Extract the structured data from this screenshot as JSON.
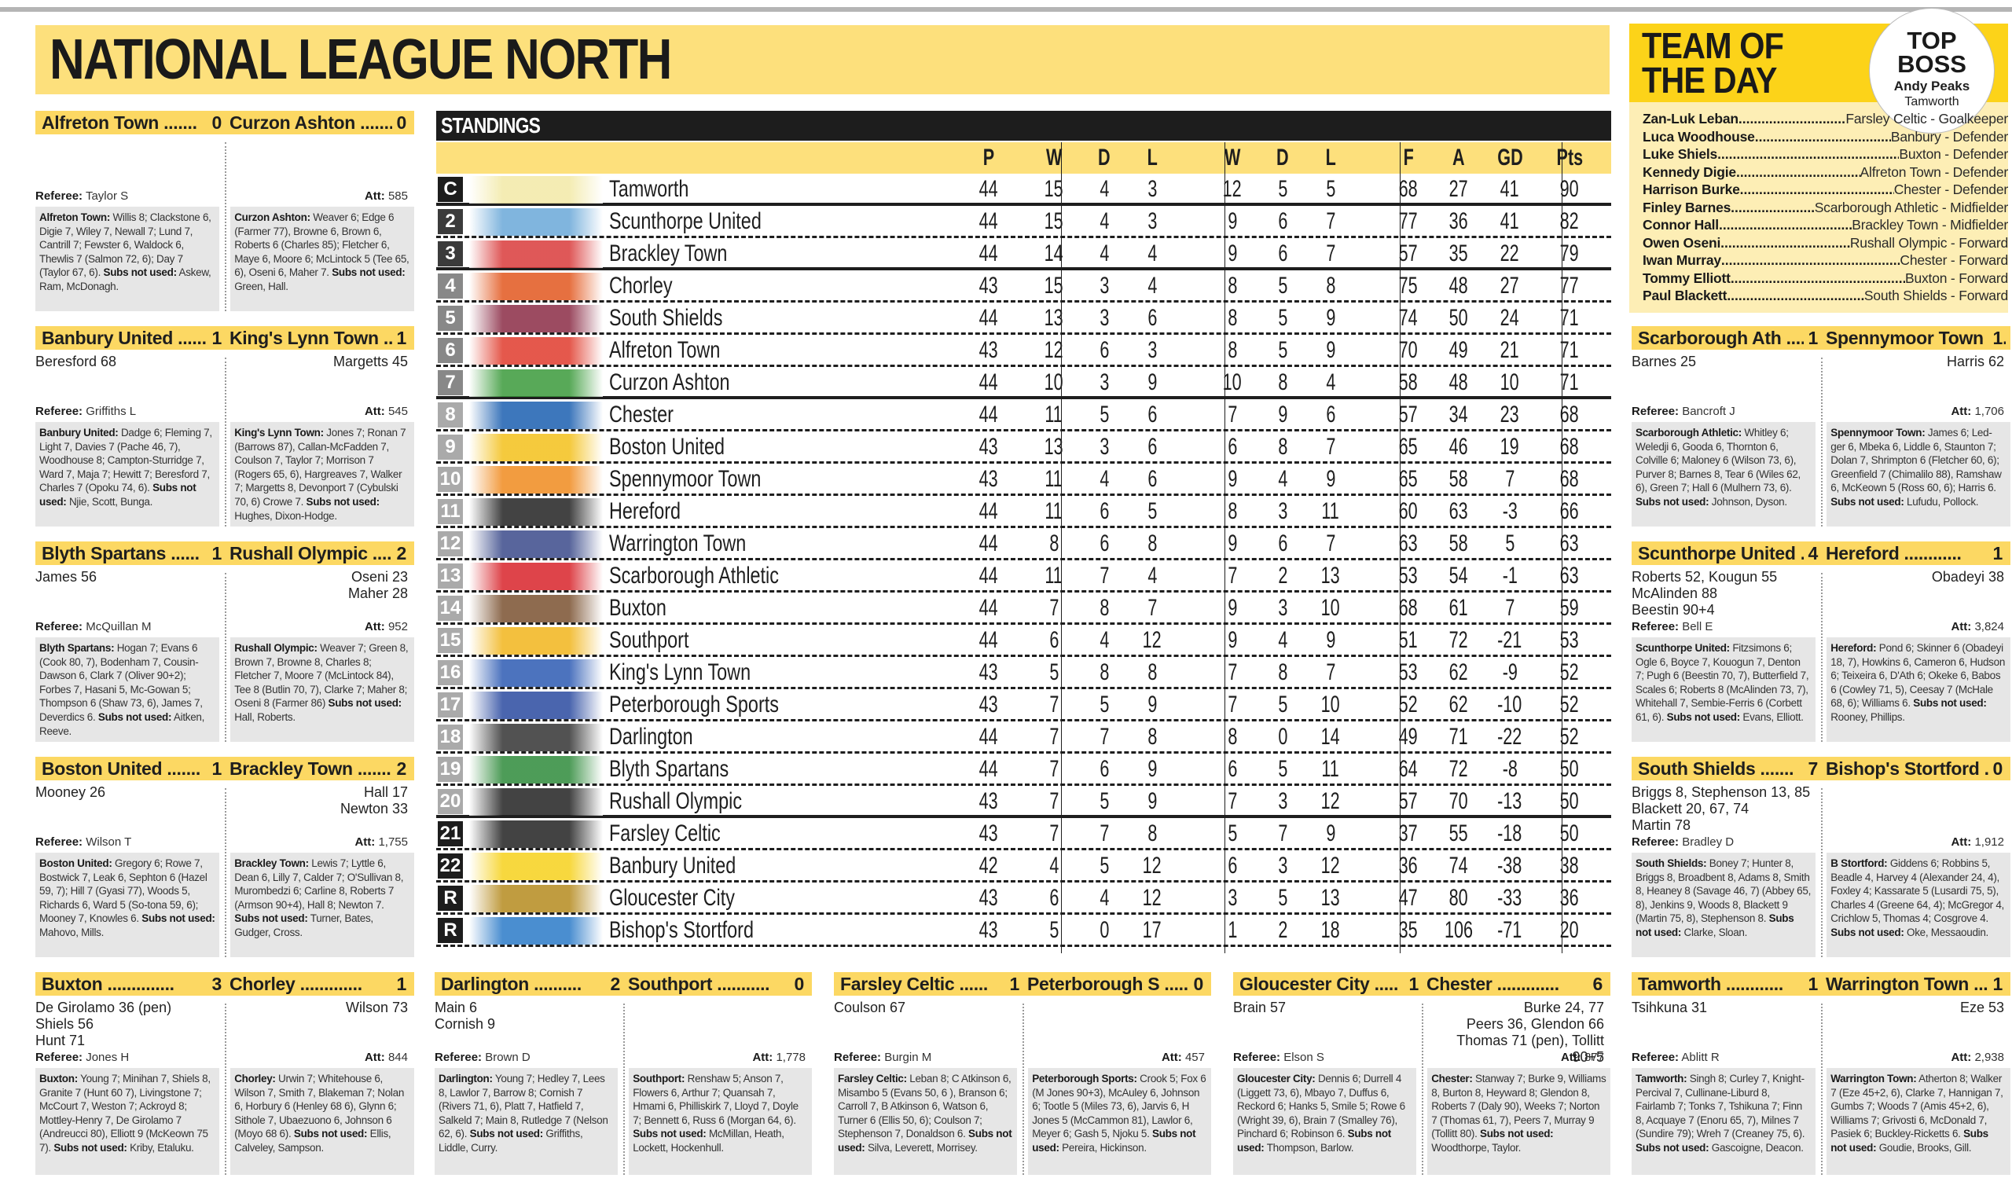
{
  "page_title": "NATIONAL LEAGUE NORTH",
  "labels": {
    "referee": "Referee:",
    "att": "Att:",
    "subs_not_used": "Subs not used:"
  },
  "standings": {
    "title": "STANDINGS",
    "columns": [
      "P",
      "W",
      "D",
      "L",
      "W",
      "D",
      "L",
      "F",
      "A",
      "GD",
      "Pts"
    ],
    "rows": [
      {
        "pos": "C",
        "team": "Tamworth",
        "p": "44",
        "hw": "15",
        "hd": "4",
        "hl": "3",
        "aw": "12",
        "ad": "5",
        "al": "5",
        "f": "68",
        "a": "27",
        "gd": "41",
        "pts": "90"
      },
      {
        "pos": "2",
        "team": "Scunthorpe United",
        "p": "44",
        "hw": "15",
        "hd": "4",
        "hl": "3",
        "aw": "9",
        "ad": "6",
        "al": "7",
        "f": "77",
        "a": "36",
        "gd": "41",
        "pts": "82"
      },
      {
        "pos": "3",
        "team": "Brackley Town",
        "p": "44",
        "hw": "14",
        "hd": "4",
        "hl": "4",
        "aw": "9",
        "ad": "6",
        "al": "7",
        "f": "57",
        "a": "35",
        "gd": "22",
        "pts": "79"
      },
      {
        "pos": "4",
        "team": "Chorley",
        "p": "43",
        "hw": "15",
        "hd": "3",
        "hl": "4",
        "aw": "8",
        "ad": "5",
        "al": "8",
        "f": "75",
        "a": "48",
        "gd": "27",
        "pts": "77"
      },
      {
        "pos": "5",
        "team": "South Shields",
        "p": "44",
        "hw": "13",
        "hd": "3",
        "hl": "6",
        "aw": "8",
        "ad": "5",
        "al": "9",
        "f": "74",
        "a": "50",
        "gd": "24",
        "pts": "71"
      },
      {
        "pos": "6",
        "team": "Alfreton Town",
        "p": "43",
        "hw": "12",
        "hd": "6",
        "hl": "3",
        "aw": "8",
        "ad": "5",
        "al": "9",
        "f": "70",
        "a": "49",
        "gd": "21",
        "pts": "71"
      },
      {
        "pos": "7",
        "team": "Curzon Ashton",
        "p": "44",
        "hw": "10",
        "hd": "3",
        "hl": "9",
        "aw": "10",
        "ad": "8",
        "al": "4",
        "f": "58",
        "a": "48",
        "gd": "10",
        "pts": "71"
      },
      {
        "pos": "8",
        "team": "Chester",
        "p": "44",
        "hw": "11",
        "hd": "5",
        "hl": "6",
        "aw": "7",
        "ad": "9",
        "al": "6",
        "f": "57",
        "a": "34",
        "gd": "23",
        "pts": "68"
      },
      {
        "pos": "9",
        "team": "Boston United",
        "p": "43",
        "hw": "13",
        "hd": "3",
        "hl": "6",
        "aw": "6",
        "ad": "8",
        "al": "7",
        "f": "65",
        "a": "46",
        "gd": "19",
        "pts": "68"
      },
      {
        "pos": "10",
        "team": "Spennymoor Town",
        "p": "43",
        "hw": "11",
        "hd": "4",
        "hl": "6",
        "aw": "9",
        "ad": "4",
        "al": "9",
        "f": "65",
        "a": "58",
        "gd": "7",
        "pts": "68"
      },
      {
        "pos": "11",
        "team": "Hereford",
        "p": "44",
        "hw": "11",
        "hd": "6",
        "hl": "5",
        "aw": "8",
        "ad": "3",
        "al": "11",
        "f": "60",
        "a": "63",
        "gd": "-3",
        "pts": "66"
      },
      {
        "pos": "12",
        "team": "Warrington Town",
        "p": "44",
        "hw": "8",
        "hd": "6",
        "hl": "8",
        "aw": "9",
        "ad": "6",
        "al": "7",
        "f": "63",
        "a": "58",
        "gd": "5",
        "pts": "63"
      },
      {
        "pos": "13",
        "team": "Scarborough Athletic",
        "p": "44",
        "hw": "11",
        "hd": "7",
        "hl": "4",
        "aw": "7",
        "ad": "2",
        "al": "13",
        "f": "53",
        "a": "54",
        "gd": "-1",
        "pts": "63"
      },
      {
        "pos": "14",
        "team": "Buxton",
        "p": "44",
        "hw": "7",
        "hd": "8",
        "hl": "7",
        "aw": "9",
        "ad": "3",
        "al": "10",
        "f": "68",
        "a": "61",
        "gd": "7",
        "pts": "59"
      },
      {
        "pos": "15",
        "team": "Southport",
        "p": "44",
        "hw": "6",
        "hd": "4",
        "hl": "12",
        "aw": "9",
        "ad": "4",
        "al": "9",
        "f": "51",
        "a": "72",
        "gd": "-21",
        "pts": "53"
      },
      {
        "pos": "16",
        "team": "King's Lynn Town",
        "p": "43",
        "hw": "5",
        "hd": "8",
        "hl": "8",
        "aw": "7",
        "ad": "8",
        "al": "7",
        "f": "53",
        "a": "62",
        "gd": "-9",
        "pts": "52"
      },
      {
        "pos": "17",
        "team": "Peterborough Sports",
        "p": "43",
        "hw": "7",
        "hd": "5",
        "hl": "9",
        "aw": "7",
        "ad": "5",
        "al": "10",
        "f": "52",
        "a": "62",
        "gd": "-10",
        "pts": "52"
      },
      {
        "pos": "18",
        "team": "Darlington",
        "p": "44",
        "hw": "7",
        "hd": "7",
        "hl": "8",
        "aw": "8",
        "ad": "0",
        "al": "14",
        "f": "49",
        "a": "71",
        "gd": "-22",
        "pts": "52"
      },
      {
        "pos": "19",
        "team": "Blyth Spartans",
        "p": "44",
        "hw": "7",
        "hd": "6",
        "hl": "9",
        "aw": "6",
        "ad": "5",
        "al": "11",
        "f": "64",
        "a": "72",
        "gd": "-8",
        "pts": "50"
      },
      {
        "pos": "20",
        "team": "Rushall Olympic",
        "p": "43",
        "hw": "7",
        "hd": "5",
        "hl": "9",
        "aw": "7",
        "ad": "3",
        "al": "12",
        "f": "57",
        "a": "70",
        "gd": "-13",
        "pts": "50"
      },
      {
        "pos": "21",
        "team": "Farsley Celtic",
        "p": "43",
        "hw": "7",
        "hd": "7",
        "hl": "8",
        "aw": "5",
        "ad": "7",
        "al": "9",
        "f": "37",
        "a": "55",
        "gd": "-18",
        "pts": "50"
      },
      {
        "pos": "22",
        "team": "Banbury United",
        "p": "42",
        "hw": "4",
        "hd": "5",
        "hl": "12",
        "aw": "6",
        "ad": "3",
        "al": "12",
        "f": "36",
        "a": "74",
        "gd": "-38",
        "pts": "38"
      },
      {
        "pos": "R",
        "team": "Gloucester City",
        "p": "43",
        "hw": "6",
        "hd": "4",
        "hl": "12",
        "aw": "3",
        "ad": "5",
        "al": "13",
        "f": "47",
        "a": "80",
        "gd": "-33",
        "pts": "36"
      },
      {
        "pos": "R",
        "team": "Bishop's Stortford",
        "p": "43",
        "hw": "5",
        "hd": "0",
        "hl": "17",
        "aw": "1",
        "ad": "2",
        "al": "18",
        "f": "35",
        "a": "106",
        "gd": "-71",
        "pts": "20"
      }
    ]
  },
  "team_of_the_day": {
    "title": "TEAM OF\nTHE DAY",
    "top_boss": {
      "label": "TOP BOSS",
      "name": "Andy Peaks",
      "club": "Tamworth"
    },
    "players": [
      {
        "name": "Zan-Luk Leban",
        "detail": "Farsley Celtic - Goalkeeper"
      },
      {
        "name": "Luca Woodhouse",
        "detail": "Banbury - Defender"
      },
      {
        "name": "Luke Shiels",
        "detail": "Buxton - Defender"
      },
      {
        "name": "Kennedy Digie",
        "detail": "Alfreton Town - Defender"
      },
      {
        "name": "Harrison Burke",
        "detail": "Chester - Defender"
      },
      {
        "name": "Finley Barnes",
        "detail": "Scarborough Athletic - Midfielder"
      },
      {
        "name": "Connor Hall",
        "detail": "Brackley Town - Midfielder"
      },
      {
        "name": "Owen Oseni",
        "detail": "Rushall Olympic - Forward"
      },
      {
        "name": "Iwan Murray",
        "detail": "Chester - Forward"
      },
      {
        "name": "Tommy Elliott",
        "detail": "Buxton - Forward"
      },
      {
        "name": "Paul Blackett",
        "detail": "South Shields - Forward"
      }
    ]
  },
  "matches": [
    {
      "home": "Alfreton Town",
      "home_score": "0",
      "away": "Curzon Ashton",
      "away_score": "0",
      "home_scorers": "",
      "away_scorers": "",
      "referee": "Taylor S",
      "att": "585",
      "home_lineup_team": "Alfreton Town:",
      "home_lineup": "Willis 8; Clackstone 6, Digie 7, Wiley 7, Newall 7; Lund 7, Cantrill 7; Fewster 6, Waldock 6, Thewlis 7 (Salmon 72, 6); Day 7 (Taylor 67, 6).",
      "home_subs": "Askew, Ram, McDonagh.",
      "away_lineup_team": "Curzon Ashton:",
      "away_lineup": "Weaver 6; Edge 6 (Farmer 77), Browne 6, Brown 6, Roberts 6 (Charles 85); Fletcher 6, Maye 6, Moore 6; McLintock 5 (Tee 65, 6), Oseni 6, Maher 7.",
      "away_subs": "Green, Hall."
    },
    {
      "home": "Banbury United",
      "home_score": "1",
      "away": "King's Lynn Town",
      "away_score": "1",
      "home_scorers": "Beresford 68",
      "away_scorers": "Margetts 45",
      "referee": "Griffiths L",
      "att": "545",
      "home_lineup_team": "Banbury United:",
      "home_lineup": "Dadge 6; Fleming 7, Light 7, Davies 7 (Pache 46, 7), Woodhouse 8; Campton-Sturridge 7, Ward 7, Maja 7; Hewitt 7; Beresford 7, Charles 7 (Opoku 74, 6).",
      "home_subs": "Njie, Scott, Bunga.",
      "away_lineup_team": "King's Lynn Town:",
      "away_lineup": "Jones 7; Ronan 7 (Barrows 87), Callan-McFadden 7, Coulson 7, Taylor 7; Morrison 7 (Rogers 65, 6), Hargreaves 7, Walker 7; Margetts 8, Devonport 7 (Cybulski 70, 6) Crowe 7.",
      "away_subs": "Hughes, Dixon-Hodge."
    },
    {
      "home": "Blyth Spartans",
      "home_score": "1",
      "away": "Rushall Olympic",
      "away_score": "2",
      "home_scorers": "James 56",
      "away_scorers": "Oseni 23\nMaher 28",
      "referee": "McQuillan M",
      "att": "952",
      "home_lineup_team": "Blyth Spartans:",
      "home_lineup": "Hogan 7; Evans 6 (Cook 80, 7), Bodenham 7, Cousin-Dawson 6, Clark 7 (Oliver 90+2); Forbes 7, Hasani 5, Mc-Gowan 5; Thompson 6 (Shaw 73, 6), James 7, Deverdics 6.",
      "home_subs": "Aitken, Reeve.",
      "away_lineup_team": "Rushall Olympic:",
      "away_lineup": "Weaver 7; Green 8, Brown 7, Browne 8, Charles 8; Fletcher 7, Moore 7 (McLintock 84), Tee 8 (Butlin 70, 7), Clarke 7; Maher 8; Oseni 8 (Farmer 86)",
      "away_subs": "Hall, Roberts."
    },
    {
      "home": "Boston United",
      "home_score": "1",
      "away": "Brackley Town",
      "away_score": "2",
      "home_scorers": "Mooney 26",
      "away_scorers": "Hall 17\nNewton 33",
      "referee": "Wilson T",
      "att": "1,755",
      "home_lineup_team": "Boston United:",
      "home_lineup": "Gregory 6; Rowe 7, Bostwick 7, Leak 6, Sephton 6 (Hazel 59, 7); Hill 7 (Gyasi 77), Woods 5, Richards 6, Ward 5 (So-tona 59, 6); Mooney 7, Knowles 6.",
      "home_subs": "Mahovo, Mills.",
      "away_lineup_team": "Brackley Town:",
      "away_lineup": "Lewis 7; Lyttle 6, Dean 6, Lilly 7, Calder 7; O'Sullivan 8, Murombedzi 6; Carline 8, Roberts 7 (Armson 90+4), Hall 8; Newton 7.",
      "away_subs": "Turner, Bates, Gudger, Cross."
    },
    {
      "home": "Buxton",
      "home_score": "3",
      "away": "Chorley",
      "away_score": "1",
      "home_scorers": "De Girolamo 36 (pen)\nShiels 56\nHunt 71",
      "away_scorers": "Wilson 73",
      "referee": "Jones H",
      "att": "844",
      "home_lineup_team": "Buxton:",
      "home_lineup": "Young 7; Minihan 7, Shiels 8, Granite 7 (Hunt 60 7), Livingstone 7; McCourt 7, Weston 7; Ackroyd 8; Mottley-Henry 7, De Girolamo 7 (Andreucci 80), Elliott 9 (McKeown 75 7).",
      "home_subs": "Kriby, Etaluku.",
      "away_lineup_team": "Chorley:",
      "away_lineup": "Urwin 7; Whitehouse 6, Wilson 7, Smith 7, Blakeman 7; Nolan 6, Horbury 6 (Henley 68 6), Glynn 6; Sithole 7, Ubaezuono 6, Johnson 6 (Moyo 68 6).",
      "away_subs": "Ellis, Calveley, Sampson."
    },
    {
      "home": "Darlington",
      "home_score": "2",
      "away": "Southport",
      "away_score": "0",
      "home_scorers": "Main 6\nCornish 9",
      "away_scorers": "",
      "referee": "Brown D",
      "att": "1,778",
      "home_lineup_team": "Darlington:",
      "home_lineup": "Young 7; Hedley 7, Lees 8, Lawlor 7, Barrow 8; Cornish 7 (Rivers 71, 6), Platt 7, Hatfield 7, Salkeld 7; Main 8, Rutledge 7 (Nelson 62, 6).",
      "home_subs": "Griffiths, Liddle, Curry.",
      "away_lineup_team": "Southport:",
      "away_lineup": "Renshaw 5; Anson 7, Flowers 6, Arthur 7; Quansah 7, Hmami 6, Philliskirk 7, Lloyd 7, Doyle 7; Bennett 6, Russ 6 (Morgan 64, 6).",
      "away_subs": "McMillan, Heath, Lockett, Hockenhull."
    },
    {
      "home": "Farsley Celtic",
      "home_score": "1",
      "away": "Peterborough S",
      "away_score": "0",
      "home_scorers": "Coulson 67",
      "away_scorers": "",
      "referee": "Burgin M",
      "att": "457",
      "home_lineup_team": "Farsley Celtic:",
      "home_lineup": "Leban 8; C Atkinson 6, Misambo 5 (Evans 50, 6 ), Branson 6; Carroll 7, B Atkinson 6, Watson 6, Turner 6 (Ellis 50, 6); Coulson 7; Stephenson 7, Donaldson 6.",
      "home_subs": "Silva, Leverett, Morrisey.",
      "away_lineup_team": "Peterborough Sports:",
      "away_lineup": "Crook 5; Fox 6 (M Jones 90+3), McAuley 6, Johnson 6; Tootle 5 (Miles 73, 6), Jarvis 6, H Jones 5 (McCammon 81), Lawlor 6, Meyer 6; Gash 5, Njoku 5.",
      "away_subs": "Pereira, Hickinson."
    },
    {
      "home": "Gloucester City",
      "home_score": "1",
      "away": "Chester",
      "away_score": "6",
      "home_scorers": "Brain 57",
      "away_scorers": "Burke 24, 77\nPeers 36, Glendon 66\nThomas 71 (pen), Tollitt 90+5",
      "referee": "Elson S",
      "att": "877",
      "home_lineup_team": "Gloucester City:",
      "home_lineup": "Dennis 6; Durrell 4 (Liggett 73, 6), Mbayo 7, Duffus 6, Reckord 6; Hanks 5, Smile 5; Rowe 6 (Wright 39, 6), Brain 7 (Smalley 76), Pinchard 6; Robinson 6.",
      "home_subs": "Thompson, Barlow.",
      "away_lineup_team": "Chester:",
      "away_lineup": "Stanway 7; Burke 9, Williams 8, Burton 8, Heyward 8; Glendon 8, Roberts 7 (Daly 90), Weeks 7; Norton 7 (Thomas 61, 7), Peers 7, Murray 9 (Tollitt 80).",
      "away_subs": "Woodthorpe, Taylor."
    },
    {
      "home": "Scarborough Ath",
      "home_score": "1",
      "away": "Spennymoor Town",
      "away_score": "1",
      "home_scorers": "Barnes 25",
      "away_scorers": "Harris 62",
      "referee": "Bancroft J",
      "att": "1,706",
      "home_lineup_team": "Scarborough Athletic:",
      "home_lineup": "Whitley 6; Weledji 6, Gooda 6, Thornton 6, Colville 6; Maloney 6 (Wilson 73, 6), Purver 8; Barnes 8, Tear 6 (Wiles 62, 6), Green 7; Hall 6 (Mulhern 73, 6).",
      "home_subs": "Johnson, Dyson.",
      "away_lineup_team": "Spennymoor Town:",
      "away_lineup": "James 6; Led-ger 6, Mbeka 6, Liddle 6, Staunton 7; Dolan 7, Shrimpton 6 (Fletcher 60, 6); Greenfield 7 (Chimalilo 88), Ramshaw 6, McKeown 5 (Ross 60, 6); Harris 6.",
      "away_subs": "Lufudu, Pollock."
    },
    {
      "home": "Scunthorpe United",
      "home_score": "4",
      "away": "Hereford",
      "away_score": "1",
      "home_scorers": "Roberts 52, Kougun 55\nMcAlinden 88\nBeestin 90+4",
      "away_scorers": "Obadeyi 38",
      "referee": "Bell E",
      "att": "3,824",
      "home_lineup_team": "Scunthorpe United:",
      "home_lineup": "Fitzsimons 6; Ogle 6, Boyce 7, Kouogun 7, Denton 7; Pugh 6 (Beestin 70, 7), Butterfield 7, Scales 6; Roberts 8 (McAlinden 73, 7), Whitehall 7, Sembie-Ferris 6 (Corbett 61, 6).",
      "home_subs": "Evans, Elliott.",
      "away_lineup_team": "Hereford:",
      "away_lineup": "Pond 6; Skinner 6 (Obadeyi 18, 7), Howkins 6, Cameron 6, Hudson 6; Teixeira 6, D'Ath 6; Okeke 6, Babos 6 (Cowley 71, 5), Ceesay 7 (McHale 68, 6); Williams 6.",
      "away_subs": "Rooney, Phillips."
    },
    {
      "home": "South Shields",
      "home_score": "7",
      "away": "Bishop's Stortford",
      "away_score": "0",
      "home_scorers": "Briggs 8, Stephenson 13, 85\nBlackett 20, 67, 74\nMartin 78",
      "away_scorers": "",
      "referee": "Bradley D",
      "att": "1,912",
      "home_lineup_team": "South Shields:",
      "home_lineup": "Boney 7; Hunter 8, Briggs 8, Broadbent 8, Adams 8, Smith 8, Heaney 8 (Savage 46, 7) (Abbey 65, 8), Jenkins 9, Woods 8, Blackett 9 (Martin 75, 8), Stephenson 8.",
      "home_subs": "Clarke, Sloan.",
      "away_lineup_team": "B Stortford:",
      "away_lineup": "Giddens 6; Robbins 5, Beadle 4, Harvey 4 (Alexander 24, 4), Foxley 4; Kassarate 5 (Lusardi 75, 5), Charles 4 (Greene 64, 4); McGregor 4, Crichlow 5, Thomas 4; Cosgrove 4.",
      "away_subs": "Oke, Messaoudin."
    },
    {
      "home": "Tamworth",
      "home_score": "1",
      "away": "Warrington Town",
      "away_score": "1",
      "home_scorers": "Tsihkuna 31",
      "away_scorers": "Eze 53",
      "referee": "Ablitt R",
      "att": "2,938",
      "home_lineup_team": "Tamworth:",
      "home_lineup": "Singh 8; Curley 7, Knight-Percival 7, Cullinane-Liburd 8, Fairlamb 7; Tonks 7, Tshikuna 7; Finn 8, Acquaye 7 (Enoru 65, 7), Milnes 7 (Sundire 79); Wreh 7 (Creaney 75, 6).",
      "home_subs": "Gascoigne, Deacon.",
      "away_lineup_team": "Warrington Town:",
      "away_lineup": "Atherton 8; Walker 7 (Eze 45+2, 6), Clarke 7, Hannigan 7, Gumbs 7; Woods 7 (Amis 45+2, 6), Williams 7; Grivosti 6, McDonald 7, Pasiek 6; Buckley-Ricketts 6.",
      "away_subs": "Goudie, Brooks, Gill."
    }
  ],
  "colors": {
    "header_yellow": "#fde07c",
    "score_bar": "#fcd863",
    "totd_header": "#fcd319",
    "totd_body": "#fdeeb5",
    "dark": "#1d1d1d",
    "lineup_bg": "#e6e6e6"
  }
}
